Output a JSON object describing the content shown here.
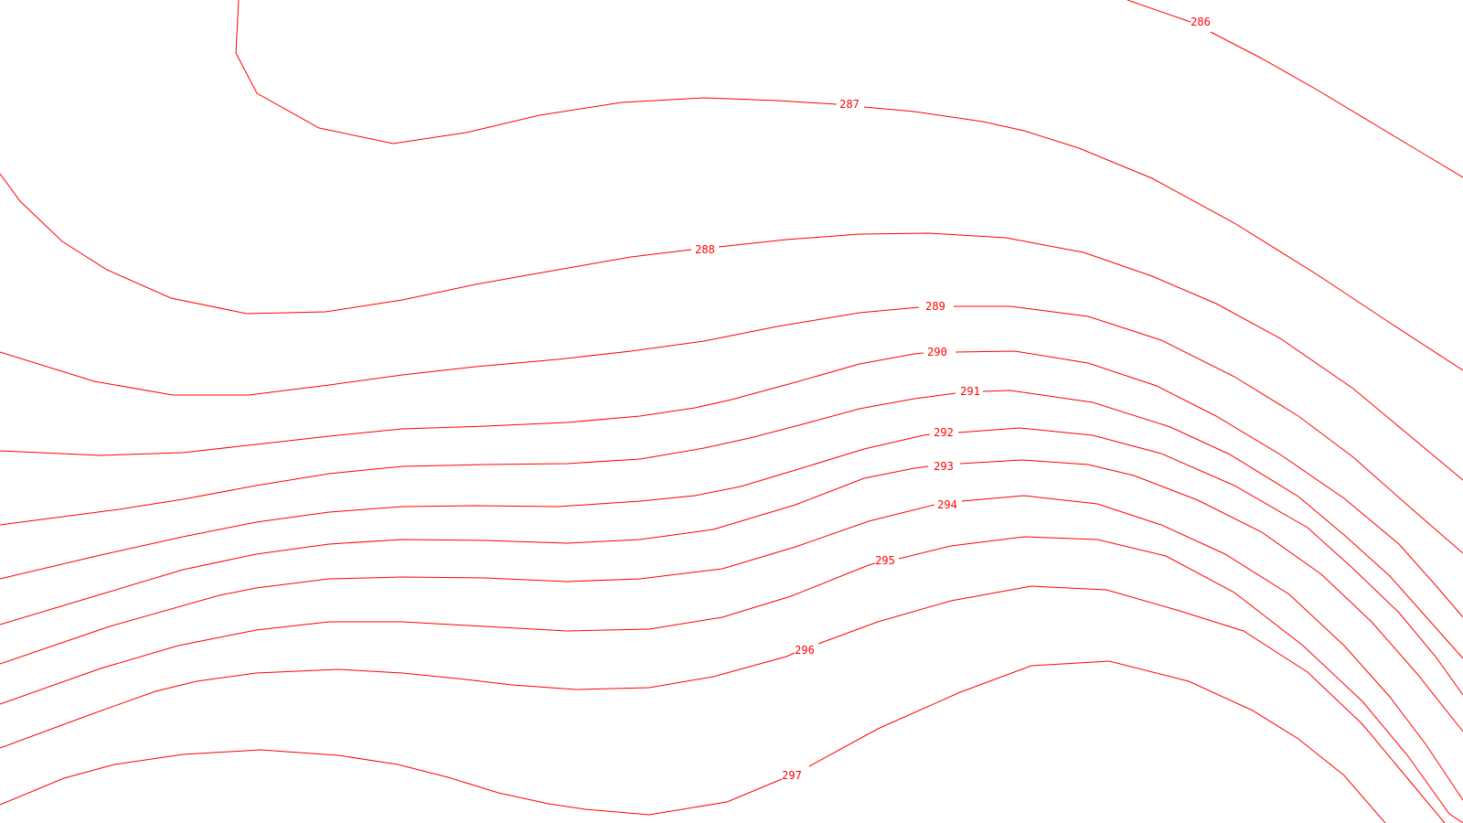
{
  "map": {
    "line_color": "#ff0000",
    "background": "#ffffff",
    "contours": [
      {
        "label": "286"
      },
      {
        "label": "287"
      },
      {
        "label": "288"
      },
      {
        "label": "289"
      },
      {
        "label": "290"
      },
      {
        "label": "291"
      },
      {
        "label": "292"
      },
      {
        "label": "293"
      },
      {
        "label": "294"
      },
      {
        "label": "295"
      },
      {
        "label": "296"
      },
      {
        "label": "297"
      }
    ]
  }
}
